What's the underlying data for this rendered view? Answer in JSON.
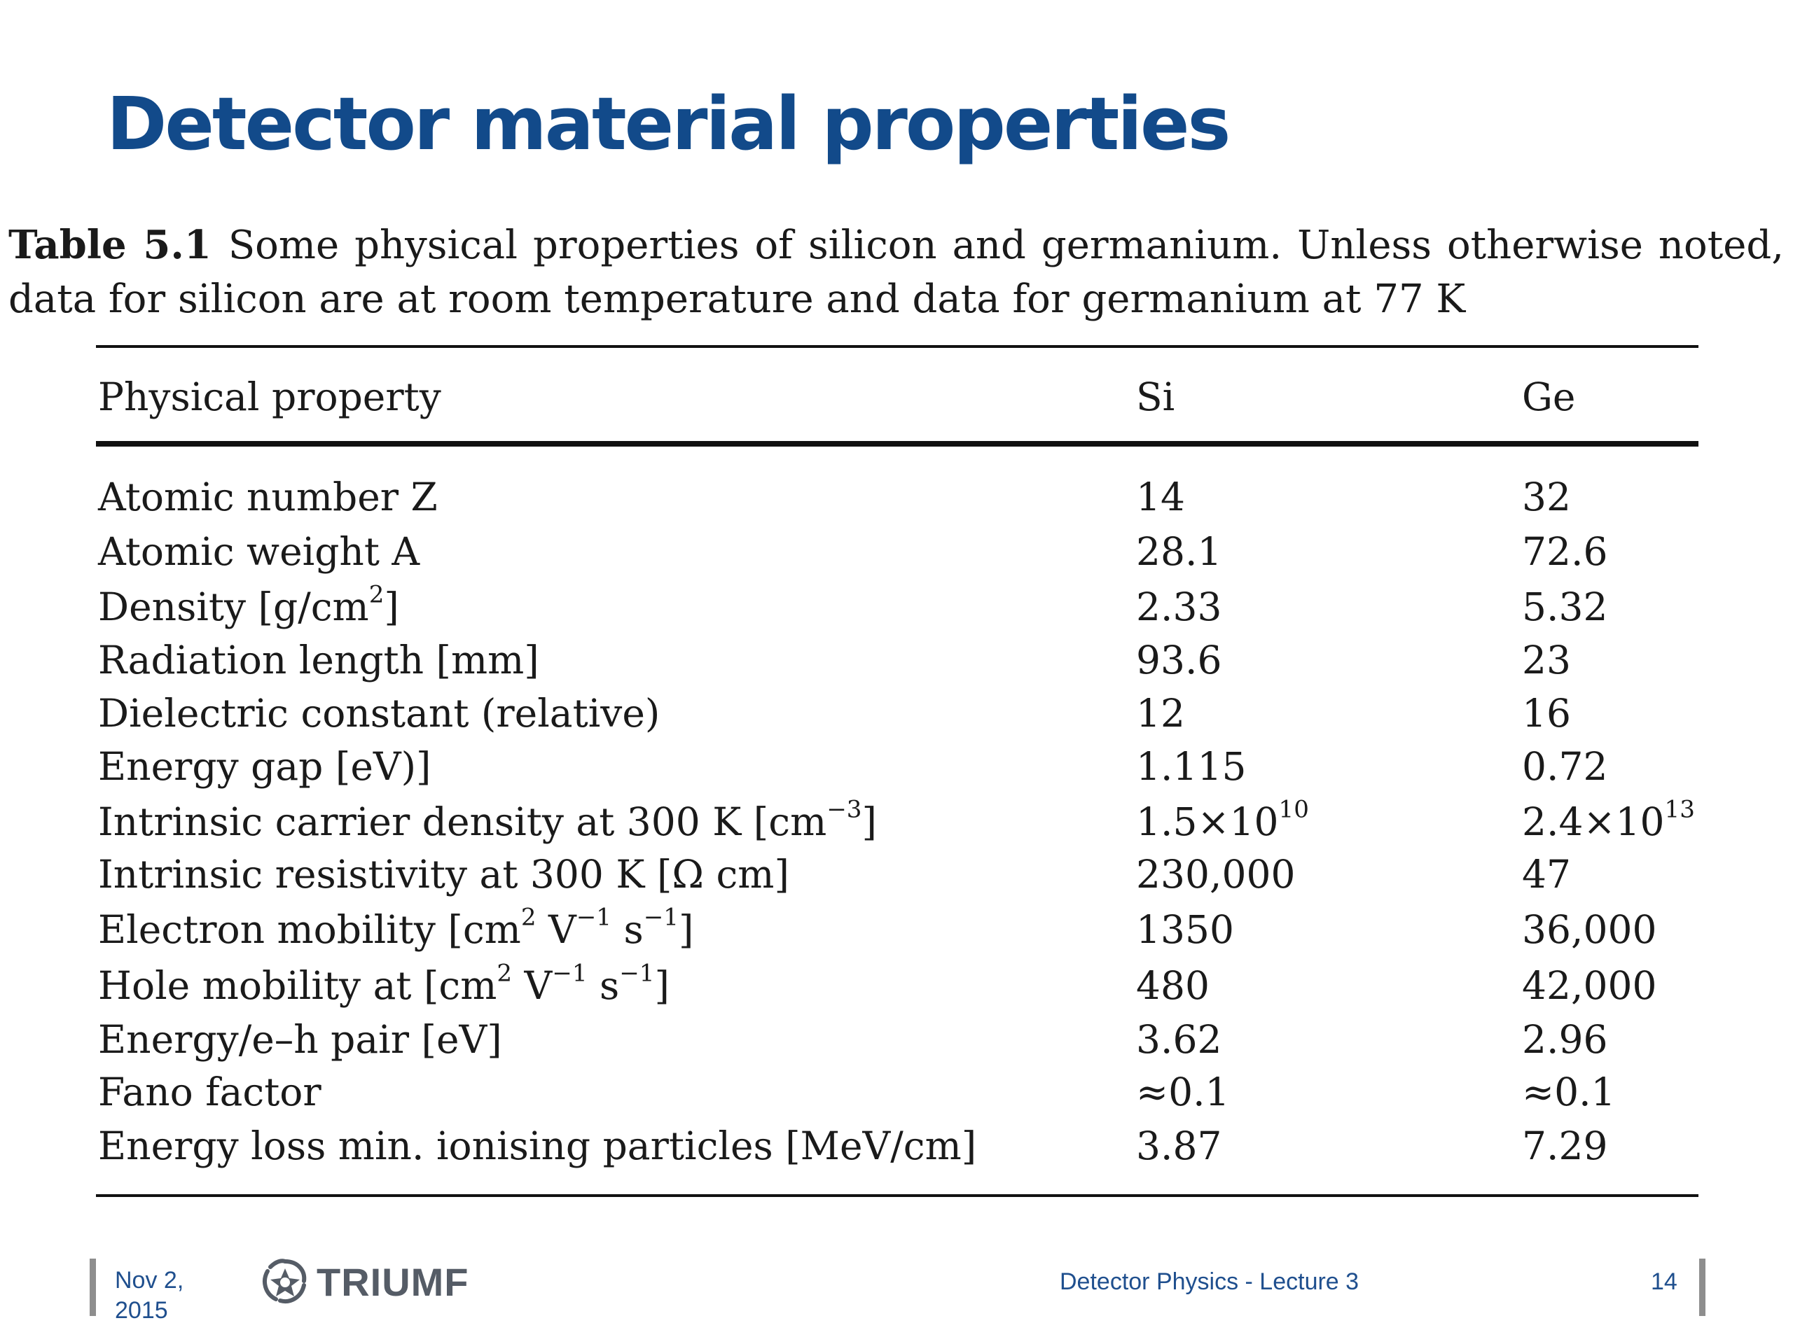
{
  "slide": {
    "title": "Detector material properties"
  },
  "caption": {
    "label": "Table 5.1",
    "text": "Some physical properties of silicon and germanium. Unless otherwise noted, data for silicon are at room temperature and data for germanium at 77 K"
  },
  "table": {
    "headers": {
      "property": "Physical property",
      "si": "Si",
      "ge": "Ge"
    },
    "rows": [
      {
        "property": "Atomic number Z",
        "si": "14",
        "ge": "32"
      },
      {
        "property": "Atomic weight A",
        "si": "28.1",
        "ge": "72.6"
      },
      {
        "property_base": "Density [g/cm",
        "property_sup": "2",
        "property_tail": "]",
        "si": "2.33",
        "ge": "5.32"
      },
      {
        "property": "Radiation length [mm]",
        "si": "93.6",
        "ge": "23"
      },
      {
        "property": "Dielectric constant (relative)",
        "si": "12",
        "ge": "16"
      },
      {
        "property": "Energy gap [eV)]",
        "si": "1.115",
        "ge": "0.72"
      },
      {
        "property_base": "Intrinsic carrier density at 300 K [cm",
        "property_sup": "−3",
        "property_tail": "]",
        "si_base": "1.5×10",
        "si_sup": "10",
        "ge_base": "2.4×10",
        "ge_sup": "13"
      },
      {
        "property": "Intrinsic resistivity at 300 K [Ω cm]",
        "si": "230,000",
        "ge": "47"
      },
      {
        "property_base": "Electron mobility [cm",
        "property_sup1": "2",
        "property_mid1": " V",
        "property_sup2": "−1",
        "property_mid2": " s",
        "property_sup3": "−1",
        "property_tail": "]",
        "si": "1350",
        "ge": "36,000"
      },
      {
        "property_base": "Hole mobility at [cm",
        "property_sup1": "2",
        "property_mid1": " V",
        "property_sup2": "−1",
        "property_mid2": " s",
        "property_sup3": "−1",
        "property_tail": "]",
        "si": "480",
        "ge": "42,000"
      },
      {
        "property": "Energy/e–h pair [eV]",
        "si": "3.62",
        "ge": "2.96"
      },
      {
        "property": "Fano factor",
        "si": "≈0.1",
        "ge": "≈0.1"
      },
      {
        "property": "Energy loss min. ionising particles [MeV/cm]",
        "si": "3.87",
        "ge": "7.29"
      }
    ]
  },
  "footer": {
    "date_line1": "Nov 2,",
    "date_line2": "2015",
    "logo_text": "TRIUMF",
    "lecture": "Detector Physics - Lecture 3",
    "page_number": "14"
  },
  "colors": {
    "title": "#124a8a",
    "footer_text": "#1f4f8e",
    "logo": "#555c66"
  }
}
